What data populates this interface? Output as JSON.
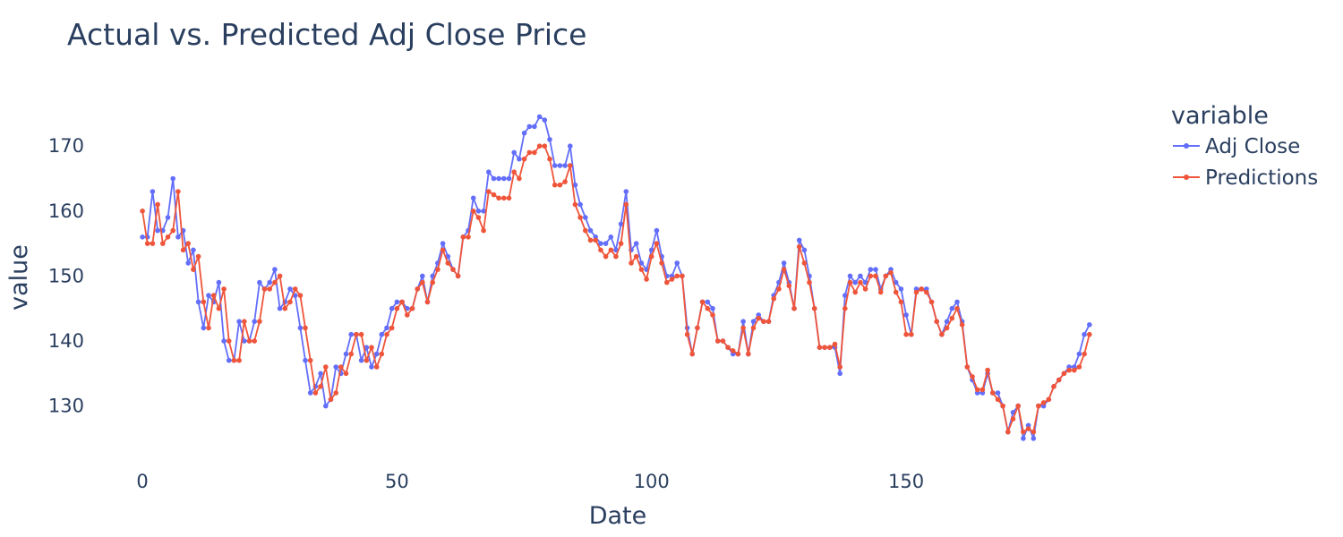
{
  "chart_data": {
    "type": "line",
    "title": "Actual vs. Predicted Adj Close Price",
    "xlabel": "Date",
    "ylabel": "value",
    "xlim": [
      -3,
      195
    ],
    "ylim": [
      122.5,
      176.5
    ],
    "xticks": [
      0,
      50,
      100,
      150
    ],
    "yticks": [
      130,
      140,
      150,
      160,
      170
    ],
    "grid": false,
    "legend": {
      "title": "variable",
      "position": "top-right"
    },
    "series": [
      {
        "name": "Adj Close",
        "color": "#636efa",
        "values": [
          156,
          156,
          163,
          157,
          157,
          159,
          165,
          156,
          157,
          152,
          154,
          146,
          142,
          147,
          146,
          149,
          140,
          137,
          137,
          143,
          140,
          140,
          143,
          149,
          148,
          149,
          151,
          145,
          146,
          148,
          147,
          142,
          137,
          132,
          133,
          135,
          130,
          131,
          136,
          135,
          138,
          141,
          141,
          137,
          139,
          136,
          138,
          141,
          142,
          145,
          146,
          146,
          145,
          145,
          148,
          150,
          146,
          150,
          152,
          155,
          153,
          151,
          150,
          156,
          157,
          162,
          160,
          160,
          166,
          165,
          165,
          165,
          165,
          169,
          168,
          172,
          173,
          173,
          174.5,
          174,
          171,
          167,
          167,
          167,
          170,
          164,
          161,
          159,
          157,
          156,
          155,
          155,
          156,
          154,
          158,
          163,
          154,
          155,
          152,
          151,
          154,
          157,
          153,
          150,
          150,
          152,
          150,
          142,
          138,
          142,
          146,
          146,
          145,
          140,
          140,
          139,
          138,
          138,
          143,
          138,
          143,
          144,
          143,
          143,
          147,
          149,
          152,
          149,
          145,
          155.5,
          154,
          150,
          145,
          139,
          139,
          139,
          139,
          135,
          147,
          150,
          149,
          150,
          149,
          151,
          151,
          148,
          150,
          151,
          149,
          148,
          144,
          141,
          148,
          148,
          148,
          146,
          143,
          141,
          143,
          145,
          146,
          143,
          136,
          134,
          132,
          132,
          135,
          132,
          132,
          130,
          126,
          129,
          130,
          125,
          127,
          125,
          130,
          130,
          131,
          133,
          134,
          135,
          136,
          136,
          138,
          141,
          142.5
        ]
      },
      {
        "name": "Predictions",
        "color": "#ef553b",
        "values": [
          160,
          155,
          155,
          161,
          155,
          156,
          157,
          163,
          154,
          155,
          151,
          153,
          146,
          142,
          147,
          145,
          148,
          140,
          137,
          137,
          143,
          140,
          140,
          143,
          148,
          148,
          149,
          150,
          145,
          146,
          148,
          147,
          142,
          137,
          132,
          133,
          136,
          131,
          132,
          136,
          135,
          138,
          141,
          141,
          137,
          139,
          136,
          138,
          141,
          142,
          145,
          146,
          144,
          145,
          148,
          149,
          146,
          149,
          151,
          154,
          152,
          151,
          150,
          156,
          156,
          160,
          159,
          157,
          163,
          162.5,
          162,
          162,
          162,
          166,
          165,
          168,
          169,
          169,
          170,
          170,
          168,
          164,
          164,
          164.5,
          167,
          161,
          159,
          157,
          155.5,
          155.5,
          154,
          153,
          154,
          153,
          155,
          161,
          152,
          153,
          151,
          149.5,
          153,
          155,
          152,
          149,
          149.5,
          150,
          150,
          141,
          138,
          142,
          146,
          145,
          144,
          140,
          140,
          139,
          138.5,
          138,
          142,
          138,
          142,
          143.5,
          143,
          143,
          146.5,
          148,
          151,
          148.5,
          145,
          154.5,
          152,
          149,
          145,
          139,
          139,
          139,
          139.5,
          136,
          145,
          149,
          147.5,
          149,
          148,
          150,
          150,
          147.5,
          150,
          150.5,
          147.5,
          146,
          141,
          141,
          147.5,
          148,
          147.5,
          146,
          143,
          141,
          142,
          143.5,
          145,
          142.5,
          136,
          134.5,
          132.5,
          132.5,
          135.5,
          132,
          131,
          130,
          126,
          128,
          130,
          126,
          126.5,
          126,
          130,
          130.5,
          131,
          133,
          134,
          135,
          135.5,
          135.5,
          136,
          138,
          141
        ]
      }
    ]
  }
}
